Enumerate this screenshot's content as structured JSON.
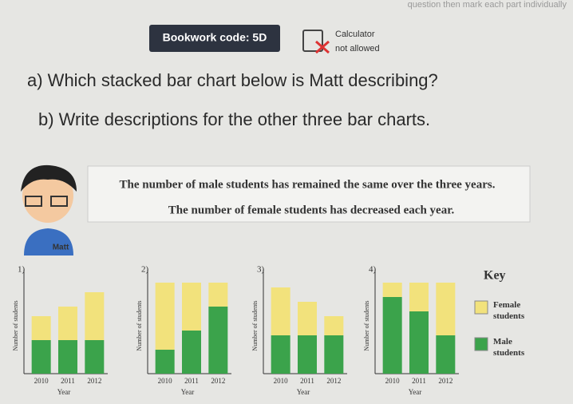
{
  "header": {
    "instruction": "question then mark each part individually",
    "bookwork": "Bookwork code: 5D",
    "calculator": "Calculator",
    "calculator_status": "not allowed"
  },
  "questions": [
    "a) Which stacked bar chart below is Matt describing?",
    "b) Write descriptions for the other three bar charts."
  ],
  "speech": [
    "The number of male students has remained the same over the three years.",
    "The number of female students has decreased each year."
  ],
  "speaker": "Matt",
  "key": {
    "title": "Key",
    "items": [
      {
        "label": "Female students",
        "color": "#f2e27c"
      },
      {
        "label": "Male students",
        "color": "#3ba34b"
      }
    ]
  },
  "chart_data": [
    {
      "type": "bar",
      "stacked": true,
      "title": "1)",
      "x_label": "Year",
      "y_label": "Number of students",
      "categories": [
        "2010",
        "2011",
        "2012"
      ],
      "ylim": [
        0,
        10
      ],
      "series": [
        {
          "color": "#3ba34b",
          "values": [
            3.5,
            3.5,
            3.5
          ]
        },
        {
          "color": "#f2e27c",
          "values": [
            2.5,
            3.5,
            5
          ]
        }
      ]
    },
    {
      "type": "bar",
      "stacked": true,
      "title": "2)",
      "x_label": "Year",
      "y_label": "Number of students",
      "categories": [
        "2010",
        "2011",
        "2012"
      ],
      "ylim": [
        0,
        10
      ],
      "series": [
        {
          "color": "#3ba34b",
          "values": [
            2.5,
            4.5,
            7
          ]
        },
        {
          "color": "#f2e27c",
          "values": [
            7,
            5,
            2.5
          ]
        }
      ]
    },
    {
      "type": "bar",
      "stacked": true,
      "title": "3)",
      "x_label": "Year",
      "y_label": "Number of students",
      "categories": [
        "2010",
        "2011",
        "2012"
      ],
      "ylim": [
        0,
        10
      ],
      "series": [
        {
          "color": "#3ba34b",
          "values": [
            4,
            4,
            4
          ]
        },
        {
          "color": "#f2e27c",
          "values": [
            5,
            3.5,
            2
          ]
        }
      ]
    },
    {
      "type": "bar",
      "stacked": true,
      "title": "4)",
      "x_label": "Year",
      "y_label": "Number of students",
      "categories": [
        "2010",
        "2011",
        "2012"
      ],
      "ylim": [
        0,
        10
      ],
      "series": [
        {
          "color": "#3ba34b",
          "values": [
            8,
            6.5,
            4
          ]
        },
        {
          "color": "#f2e27c",
          "values": [
            1.5,
            3,
            5.5
          ]
        }
      ]
    }
  ]
}
